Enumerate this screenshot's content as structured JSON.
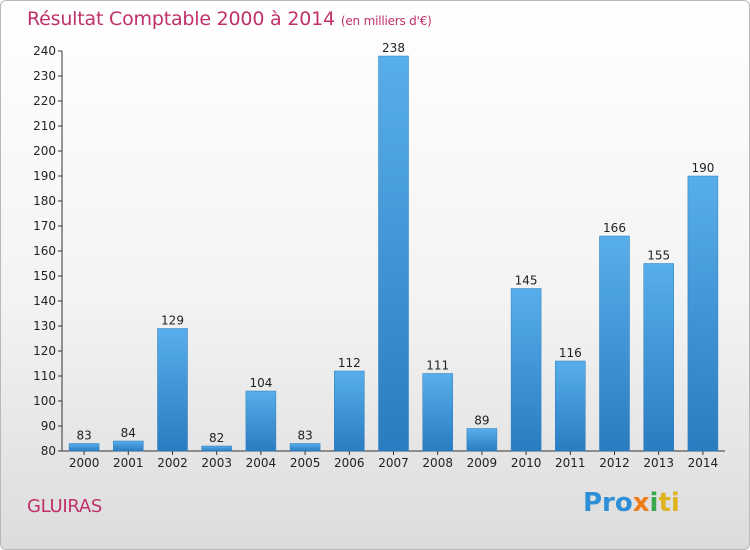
{
  "header": {
    "title": "Résultat Comptable 2000 à 2014",
    "subtitle": "(en milliers d'€)"
  },
  "footer": {
    "commune": "GLUIRAS",
    "logo_parts": [
      "Pro",
      "x",
      "i",
      "ti"
    ]
  },
  "colors": {
    "bar": "#3d94d6",
    "title": "#c0306a",
    "axis": "#333333"
  },
  "chart_data": {
    "type": "bar",
    "title": "Résultat Comptable 2000 à 2014",
    "subtitle": "(en milliers d'€)",
    "xlabel": "",
    "ylabel": "",
    "categories": [
      "2000",
      "2001",
      "2002",
      "2003",
      "2004",
      "2005",
      "2006",
      "2007",
      "2008",
      "2009",
      "2010",
      "2011",
      "2012",
      "2013",
      "2014"
    ],
    "values": [
      83,
      84,
      129,
      82,
      104,
      83,
      112,
      238,
      111,
      89,
      145,
      116,
      166,
      155,
      190
    ],
    "ylim": [
      80,
      240
    ],
    "yticks": [
      80,
      90,
      100,
      110,
      120,
      130,
      140,
      150,
      160,
      170,
      180,
      190,
      200,
      210,
      220,
      230,
      240
    ],
    "grid": false,
    "legend": "none"
  }
}
